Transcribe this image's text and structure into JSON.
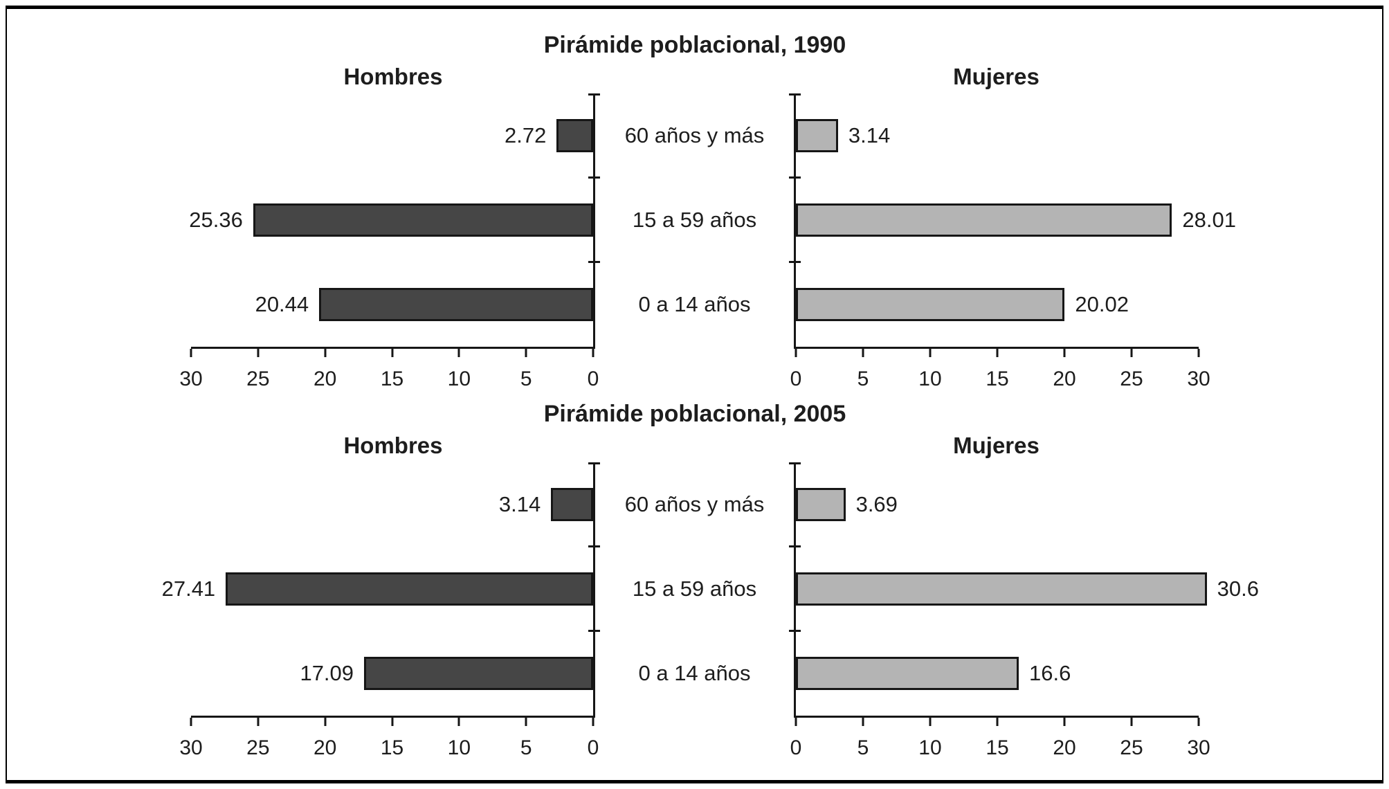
{
  "axis_max": 30,
  "figure": {
    "background": "#ffffff",
    "frame_color": "#000000",
    "bar_dark": "#464646",
    "bar_light": "#b4b4b4"
  },
  "chart_data": [
    {
      "type": "bar",
      "title": "Pirámide poblacional, 1990",
      "left_header": "Hombres",
      "right_header": "Mujeres",
      "categories": [
        "60 años y más",
        "15 a 59 años",
        "0 a 14 años"
      ],
      "series": [
        {
          "name": "Hombres",
          "side": "left",
          "color": "#464646",
          "values": [
            2.72,
            25.36,
            20.44
          ]
        },
        {
          "name": "Mujeres",
          "side": "right",
          "color": "#b4b4b4",
          "values": [
            3.14,
            28.01,
            20.02
          ]
        }
      ],
      "rows": [
        {
          "category": "60 años y más",
          "hombres": "2.72",
          "mujeres": "3.14"
        },
        {
          "category": "15 a 59 años",
          "hombres": "25.36",
          "mujeres": "28.01"
        },
        {
          "category": "0 a 14 años",
          "hombres": "20.44",
          "mujeres": "20.02"
        }
      ],
      "x_ticks_left": [
        "30",
        "25",
        "20",
        "15",
        "10",
        "5",
        "0"
      ],
      "x_ticks_right": [
        "0",
        "5",
        "10",
        "15",
        "20",
        "25",
        "30"
      ],
      "xlim": [
        0,
        30
      ]
    },
    {
      "type": "bar",
      "title": "Pirámide poblacional, 2005",
      "left_header": "Hombres",
      "right_header": "Mujeres",
      "categories": [
        "60 años y más",
        "15 a 59 años",
        "0 a 14 años"
      ],
      "series": [
        {
          "name": "Hombres",
          "side": "left",
          "color": "#464646",
          "values": [
            3.14,
            27.41,
            17.09
          ]
        },
        {
          "name": "Mujeres",
          "side": "right",
          "color": "#b4b4b4",
          "values": [
            3.69,
            30.6,
            16.6
          ]
        }
      ],
      "rows": [
        {
          "category": "60 años y más",
          "hombres": "3.14",
          "mujeres": "3.69"
        },
        {
          "category": "15 a 59 años",
          "hombres": "27.41",
          "mujeres": "30.6"
        },
        {
          "category": "0 a 14 años",
          "hombres": "17.09",
          "mujeres": "16.6"
        }
      ],
      "x_ticks_left": [
        "30",
        "25",
        "20",
        "15",
        "10",
        "5",
        "0"
      ],
      "x_ticks_right": [
        "0",
        "5",
        "10",
        "15",
        "20",
        "25",
        "30"
      ],
      "xlim": [
        0,
        30
      ]
    }
  ]
}
